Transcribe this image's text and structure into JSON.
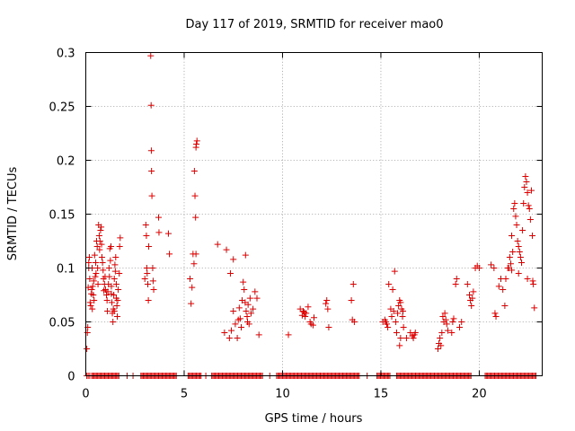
{
  "chart_data": {
    "type": "scatter",
    "title": "Day 117 of 2019, SRMTID for receiver mao0",
    "xlabel": "GPS time / hours",
    "ylabel": "SRMTID / TECUs",
    "xlim": [
      0,
      23.2
    ],
    "ylim": [
      0,
      0.3
    ],
    "x_ticks": [
      0,
      5,
      10,
      15,
      20
    ],
    "x_tick_labels": [
      "0",
      "5",
      "10",
      "15",
      "20"
    ],
    "y_ticks": [
      0,
      0.05,
      0.1,
      0.15,
      0.2,
      0.25,
      0.3
    ],
    "y_tick_labels": [
      "0",
      "0.05",
      "0.1",
      "0.15",
      "0.2",
      "0.25",
      "0.3"
    ],
    "grid": true,
    "marker": "+",
    "color": "#dd0000",
    "series": [
      {
        "name": "SRMTID",
        "points": [
          [
            0.05,
            0.025
          ],
          [
            0.08,
            0.04
          ],
          [
            0.1,
            0.045
          ],
          [
            0.12,
            0.082
          ],
          [
            0.15,
            0.105
          ],
          [
            0.18,
            0.11
          ],
          [
            0.2,
            0.09
          ],
          [
            0.22,
            0.068
          ],
          [
            0.25,
            0.065
          ],
          [
            0.3,
            0.08
          ],
          [
            0.32,
            0.1
          ],
          [
            0.35,
            0.083
          ],
          [
            0.38,
            0.075
          ],
          [
            0.4,
            0.088
          ],
          [
            0.42,
            0.07
          ],
          [
            0.45,
            0.112
          ],
          [
            0.48,
            0.092
          ],
          [
            0.5,
            0.105
          ],
          [
            0.52,
            0.095
          ],
          [
            0.55,
            0.125
          ],
          [
            0.58,
            0.12
          ],
          [
            0.6,
            0.1
          ],
          [
            0.62,
            0.085
          ],
          [
            0.65,
            0.14
          ],
          [
            0.68,
            0.13
          ],
          [
            0.7,
            0.117
          ],
          [
            0.72,
            0.125
          ],
          [
            0.75,
            0.135
          ],
          [
            0.78,
            0.138
          ],
          [
            0.8,
            0.122
          ],
          [
            0.82,
            0.11
          ],
          [
            0.85,
            0.105
          ],
          [
            0.88,
            0.098
          ],
          [
            0.9,
            0.09
          ],
          [
            0.92,
            0.079
          ],
          [
            0.95,
            0.085
          ],
          [
            0.98,
            0.092
          ],
          [
            0.15,
            0.1
          ],
          [
            0.28,
            0.076
          ],
          [
            0.33,
            0.062
          ],
          [
            1.0,
            0.08
          ],
          [
            1.05,
            0.075
          ],
          [
            1.08,
            0.07
          ],
          [
            1.1,
            0.06
          ],
          [
            1.12,
            0.078
          ],
          [
            1.15,
            0.085
          ],
          [
            1.18,
            0.1
          ],
          [
            1.2,
            0.092
          ],
          [
            1.22,
            0.118
          ],
          [
            1.25,
            0.107
          ],
          [
            1.28,
            0.12
          ],
          [
            1.3,
            0.083
          ],
          [
            1.32,
            0.068
          ],
          [
            1.35,
            0.058
          ],
          [
            1.38,
            0.05
          ],
          [
            1.4,
            0.062
          ],
          [
            1.42,
            0.075
          ],
          [
            1.45,
            0.09
          ],
          [
            1.48,
            0.103
          ],
          [
            1.5,
            0.097
          ],
          [
            1.52,
            0.11
          ],
          [
            1.55,
            0.085
          ],
          [
            1.58,
            0.065
          ],
          [
            1.6,
            0.055
          ],
          [
            1.62,
            0.07
          ],
          [
            1.65,
            0.08
          ],
          [
            1.7,
            0.095
          ],
          [
            1.72,
            0.12
          ],
          [
            1.75,
            0.128
          ],
          [
            1.3,
            0.076
          ],
          [
            1.45,
            0.06
          ],
          [
            1.55,
            0.072
          ],
          [
            3.0,
            0.09
          ],
          [
            3.05,
            0.14
          ],
          [
            3.08,
            0.13
          ],
          [
            3.1,
            0.1
          ],
          [
            3.12,
            0.095
          ],
          [
            3.15,
            0.085
          ],
          [
            3.18,
            0.07
          ],
          [
            3.2,
            0.12
          ],
          [
            3.3,
            0.297
          ],
          [
            3.32,
            0.251
          ],
          [
            3.33,
            0.209
          ],
          [
            3.34,
            0.19
          ],
          [
            3.36,
            0.167
          ],
          [
            3.4,
            0.1
          ],
          [
            3.42,
            0.088
          ],
          [
            3.45,
            0.08
          ],
          [
            3.7,
            0.147
          ],
          [
            3.72,
            0.133
          ],
          [
            4.2,
            0.132
          ],
          [
            4.25,
            0.113
          ],
          [
            5.3,
            0.09
          ],
          [
            5.35,
            0.067
          ],
          [
            5.4,
            0.082
          ],
          [
            5.45,
            0.113
          ],
          [
            5.5,
            0.104
          ],
          [
            5.52,
            0.19
          ],
          [
            5.55,
            0.167
          ],
          [
            5.58,
            0.147
          ],
          [
            5.6,
            0.212
          ],
          [
            5.62,
            0.215
          ],
          [
            5.65,
            0.218
          ],
          [
            5.6,
            0.113
          ],
          [
            6.7,
            0.122
          ],
          [
            7.15,
            0.117
          ],
          [
            7.35,
            0.095
          ],
          [
            7.5,
            0.108
          ],
          [
            7.4,
            0.042
          ],
          [
            7.5,
            0.06
          ],
          [
            7.6,
            0.048
          ],
          [
            7.7,
            0.035
          ],
          [
            7.75,
            0.052
          ],
          [
            7.8,
            0.063
          ],
          [
            7.85,
            0.053
          ],
          [
            7.9,
            0.045
          ],
          [
            7.95,
            0.07
          ],
          [
            8.0,
            0.087
          ],
          [
            8.05,
            0.08
          ],
          [
            8.1,
            0.068
          ],
          [
            8.12,
            0.112
          ],
          [
            8.15,
            0.06
          ],
          [
            8.2,
            0.055
          ],
          [
            8.22,
            0.05
          ],
          [
            8.25,
            0.066
          ],
          [
            8.3,
            0.048
          ],
          [
            8.35,
            0.072
          ],
          [
            8.4,
            0.058
          ],
          [
            8.5,
            0.062
          ],
          [
            7.05,
            0.04
          ],
          [
            7.3,
            0.035
          ],
          [
            8.6,
            0.078
          ],
          [
            8.7,
            0.072
          ],
          [
            8.8,
            0.038
          ],
          [
            10.3,
            0.038
          ],
          [
            10.9,
            0.062
          ],
          [
            11.0,
            0.056
          ],
          [
            11.05,
            0.06
          ],
          [
            11.1,
            0.059
          ],
          [
            11.15,
            0.055
          ],
          [
            11.2,
            0.058
          ],
          [
            11.3,
            0.064
          ],
          [
            11.4,
            0.05
          ],
          [
            11.45,
            0.048
          ],
          [
            11.55,
            0.047
          ],
          [
            11.6,
            0.054
          ],
          [
            12.2,
            0.067
          ],
          [
            12.25,
            0.07
          ],
          [
            12.3,
            0.062
          ],
          [
            12.35,
            0.045
          ],
          [
            13.5,
            0.07
          ],
          [
            13.6,
            0.085
          ],
          [
            13.55,
            0.052
          ],
          [
            13.65,
            0.05
          ],
          [
            15.1,
            0.05
          ],
          [
            15.2,
            0.052
          ],
          [
            15.25,
            0.05
          ],
          [
            15.3,
            0.048
          ],
          [
            15.35,
            0.045
          ],
          [
            15.4,
            0.085
          ],
          [
            15.5,
            0.062
          ],
          [
            15.55,
            0.055
          ],
          [
            15.6,
            0.08
          ],
          [
            15.65,
            0.06
          ],
          [
            15.7,
            0.097
          ],
          [
            15.75,
            0.05
          ],
          [
            15.8,
            0.04
          ],
          [
            15.85,
            0.058
          ],
          [
            15.9,
            0.065
          ],
          [
            15.95,
            0.07
          ],
          [
            16.0,
            0.068
          ],
          [
            16.05,
            0.062
          ],
          [
            16.1,
            0.055
          ],
          [
            16.12,
            0.06
          ],
          [
            16.15,
            0.045
          ],
          [
            16.0,
            0.035
          ],
          [
            15.95,
            0.028
          ],
          [
            16.3,
            0.035
          ],
          [
            16.5,
            0.04
          ],
          [
            16.6,
            0.037
          ],
          [
            16.65,
            0.035
          ],
          [
            16.7,
            0.038
          ],
          [
            16.75,
            0.04
          ],
          [
            17.9,
            0.025
          ],
          [
            17.95,
            0.03
          ],
          [
            18.0,
            0.035
          ],
          [
            18.05,
            0.028
          ],
          [
            18.1,
            0.04
          ],
          [
            18.15,
            0.055
          ],
          [
            18.2,
            0.05
          ],
          [
            18.25,
            0.058
          ],
          [
            18.3,
            0.052
          ],
          [
            18.35,
            0.048
          ],
          [
            18.4,
            0.042
          ],
          [
            18.6,
            0.04
          ],
          [
            18.65,
            0.05
          ],
          [
            18.7,
            0.053
          ],
          [
            18.8,
            0.085
          ],
          [
            18.85,
            0.09
          ],
          [
            19.0,
            0.045
          ],
          [
            19.1,
            0.05
          ],
          [
            19.4,
            0.085
          ],
          [
            19.5,
            0.075
          ],
          [
            19.55,
            0.07
          ],
          [
            19.6,
            0.065
          ],
          [
            19.65,
            0.072
          ],
          [
            19.7,
            0.078
          ],
          [
            19.8,
            0.1
          ],
          [
            19.9,
            0.102
          ],
          [
            20.0,
            0.1
          ],
          [
            20.6,
            0.103
          ],
          [
            20.75,
            0.1
          ],
          [
            20.8,
            0.058
          ],
          [
            20.85,
            0.055
          ],
          [
            21.0,
            0.083
          ],
          [
            21.1,
            0.09
          ],
          [
            21.2,
            0.08
          ],
          [
            21.3,
            0.065
          ],
          [
            21.35,
            0.09
          ],
          [
            21.45,
            0.1
          ],
          [
            21.5,
            0.1
          ],
          [
            21.55,
            0.11
          ],
          [
            21.6,
            0.104
          ],
          [
            21.65,
            0.13
          ],
          [
            21.7,
            0.115
          ],
          [
            21.75,
            0.155
          ],
          [
            21.8,
            0.16
          ],
          [
            21.85,
            0.148
          ],
          [
            21.9,
            0.14
          ],
          [
            21.95,
            0.125
          ],
          [
            22.0,
            0.12
          ],
          [
            22.05,
            0.115
          ],
          [
            22.1,
            0.11
          ],
          [
            22.15,
            0.105
          ],
          [
            22.2,
            0.135
          ],
          [
            22.25,
            0.16
          ],
          [
            22.3,
            0.175
          ],
          [
            22.35,
            0.185
          ],
          [
            22.4,
            0.18
          ],
          [
            22.45,
            0.17
          ],
          [
            22.5,
            0.158
          ],
          [
            22.55,
            0.155
          ],
          [
            22.6,
            0.145
          ],
          [
            22.65,
            0.172
          ],
          [
            22.7,
            0.13
          ],
          [
            22.72,
            0.088
          ],
          [
            22.75,
            0.085
          ],
          [
            22.8,
            0.063
          ],
          [
            21.65,
            0.098
          ],
          [
            22.0,
            0.095
          ],
          [
            22.45,
            0.09
          ]
        ]
      }
    ],
    "zero_band": [
      [
        0.3,
        1.7
      ],
      [
        2.8,
        4.6
      ],
      [
        5.2,
        5.9
      ],
      [
        6.4,
        9.0
      ],
      [
        9.7,
        13.9
      ],
      [
        14.8,
        15.5
      ],
      [
        15.8,
        19.6
      ],
      [
        20.3,
        22.9
      ]
    ],
    "zero_isolated": [
      0.05,
      0.12,
      0.2,
      2.1,
      2.4,
      6.1,
      9.35,
      14.3
    ]
  }
}
